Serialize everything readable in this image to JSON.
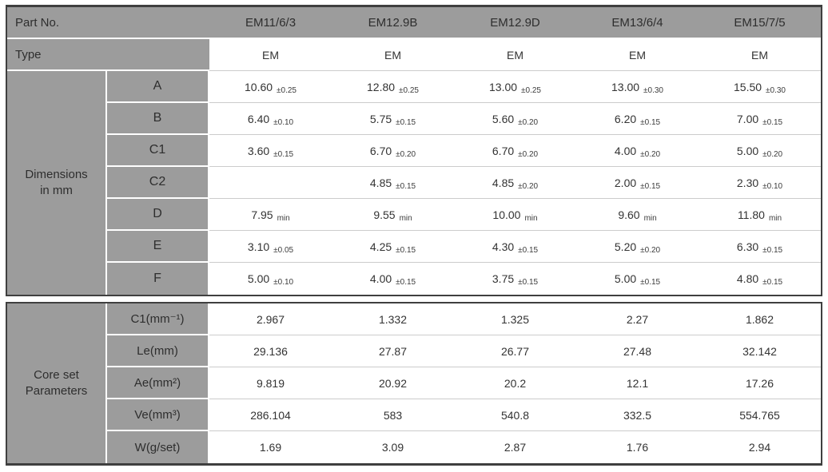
{
  "header": {
    "part_no_label": "Part No.",
    "columns": [
      "EM11/6/3",
      "EM12.9B",
      "EM12.9D",
      "EM13/6/4",
      "EM15/7/5"
    ],
    "type_label": "Type",
    "type_values": [
      "EM",
      "EM",
      "EM",
      "EM",
      "EM"
    ]
  },
  "dimensions": {
    "label_line1": "Dimensions",
    "label_line2": "in mm",
    "rows": [
      {
        "label": "A",
        "cells": [
          {
            "value": "10.60",
            "suffix": "±0.25"
          },
          {
            "value": "12.80",
            "suffix": "±0.25"
          },
          {
            "value": "13.00",
            "suffix": "±0.25"
          },
          {
            "value": "13.00",
            "suffix": "±0.30"
          },
          {
            "value": "15.50",
            "suffix": "±0.30"
          }
        ]
      },
      {
        "label": "B",
        "cells": [
          {
            "value": "6.40",
            "suffix": "±0.10"
          },
          {
            "value": "5.75",
            "suffix": "±0.15"
          },
          {
            "value": "5.60",
            "suffix": "±0.20"
          },
          {
            "value": "6.20",
            "suffix": "±0.15"
          },
          {
            "value": "7.00",
            "suffix": "±0.15"
          }
        ]
      },
      {
        "label": "C1",
        "cells": [
          {
            "value": "3.60",
            "suffix": "±0.15"
          },
          {
            "value": "6.70",
            "suffix": "±0.20"
          },
          {
            "value": "6.70",
            "suffix": "±0.20"
          },
          {
            "value": "4.00",
            "suffix": "±0.20"
          },
          {
            "value": "5.00",
            "suffix": "±0.20"
          }
        ]
      },
      {
        "label": "C2",
        "cells": [
          {
            "value": "",
            "suffix": ""
          },
          {
            "value": "4.85",
            "suffix": "±0.15"
          },
          {
            "value": "4.85",
            "suffix": "±0.20"
          },
          {
            "value": "2.00",
            "suffix": "±0.15"
          },
          {
            "value": "2.30",
            "suffix": "±0.10"
          }
        ]
      },
      {
        "label": "D",
        "cells": [
          {
            "value": "7.95",
            "suffix": "min"
          },
          {
            "value": "9.55",
            "suffix": "min"
          },
          {
            "value": "10.00",
            "suffix": "min"
          },
          {
            "value": "9.60",
            "suffix": "min"
          },
          {
            "value": "11.80",
            "suffix": "min"
          }
        ]
      },
      {
        "label": "E",
        "cells": [
          {
            "value": "3.10",
            "suffix": "±0.05"
          },
          {
            "value": "4.25",
            "suffix": "±0.15"
          },
          {
            "value": "4.30",
            "suffix": "±0.15"
          },
          {
            "value": "5.20",
            "suffix": "±0.20"
          },
          {
            "value": "6.30",
            "suffix": "±0.15"
          }
        ]
      },
      {
        "label": "F",
        "cells": [
          {
            "value": "5.00",
            "suffix": "±0.10"
          },
          {
            "value": "4.00",
            "suffix": "±0.15"
          },
          {
            "value": "3.75",
            "suffix": "±0.15"
          },
          {
            "value": "5.00",
            "suffix": "±0.15"
          },
          {
            "value": "4.80",
            "suffix": "±0.15"
          }
        ]
      }
    ]
  },
  "core_set": {
    "label_line1": "Core set",
    "label_line2": "Parameters",
    "rows": [
      {
        "label": "C1(mm⁻¹)",
        "cells": [
          "2.967",
          "1.332",
          "1.325",
          "2.27",
          "1.862"
        ]
      },
      {
        "label": "Le(mm)",
        "cells": [
          "29.136",
          "27.87",
          "26.77",
          "27.48",
          "32.142"
        ]
      },
      {
        "label": "Ae(mm²)",
        "cells": [
          "9.819",
          "20.92",
          "20.2",
          "12.1",
          "17.26"
        ]
      },
      {
        "label": "Ve(mm³)",
        "cells": [
          "286.104",
          "583",
          "540.8",
          "332.5",
          "554.765"
        ]
      },
      {
        "label": "W(g/set)",
        "cells": [
          "1.69",
          "3.09",
          "2.87",
          "1.76",
          "2.94"
        ]
      }
    ]
  },
  "colors": {
    "header_gray": "#9c9c9c",
    "frame_dark": "#3f3f3f",
    "row_line": "#cccccc",
    "text": "#333333"
  }
}
